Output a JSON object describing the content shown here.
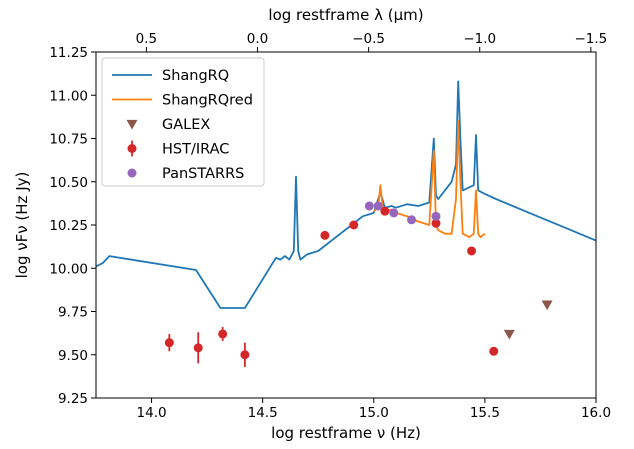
{
  "chart_data": {
    "type": "line",
    "xlabel": "log restframe ν (Hz)",
    "ylabel": "log νFν (Hz Jy)",
    "top_xlabel": "log restframe λ (µm)",
    "xlim": [
      13.75,
      16.0
    ],
    "ylim": [
      9.25,
      11.25
    ],
    "x_ticks": [
      {
        "value": 14.0,
        "label": "14.0"
      },
      {
        "value": 14.5,
        "label": "14.5"
      },
      {
        "value": 15.0,
        "label": "15.0"
      },
      {
        "value": 15.5,
        "label": "15.5"
      },
      {
        "value": 16.0,
        "label": "16.0"
      }
    ],
    "y_ticks": [
      {
        "value": 9.25,
        "label": "9.25"
      },
      {
        "value": 9.5,
        "label": "9.50"
      },
      {
        "value": 9.75,
        "label": "9.75"
      },
      {
        "value": 10.0,
        "label": "10.00"
      },
      {
        "value": 10.25,
        "label": "10.25"
      },
      {
        "value": 10.5,
        "label": "10.50"
      },
      {
        "value": 10.75,
        "label": "10.75"
      },
      {
        "value": 11.0,
        "label": "11.00"
      },
      {
        "value": 11.25,
        "label": "11.25"
      }
    ],
    "top_ticks": [
      {
        "value": 0.5,
        "label": "0.5"
      },
      {
        "value": 0.0,
        "label": "0.0"
      },
      {
        "value": -0.5,
        "label": "−0.5"
      },
      {
        "value": -1.0,
        "label": "−1.0"
      },
      {
        "value": -1.5,
        "label": "−1.5"
      }
    ],
    "legend_position": "top-left",
    "colors": {
      "ShangRQ": "#1f77b4",
      "ShangRQred": "#ff7f0e",
      "GALEX": "#8c564b",
      "HST/IRAC": "#d62728",
      "PanSTARRS": "#9467bd"
    },
    "series": [
      {
        "name": "ShangRQ",
        "kind": "line",
        "x": [
          13.75,
          13.78,
          13.81,
          14.2,
          14.31,
          14.42,
          14.54,
          14.56,
          14.58,
          14.6,
          14.62,
          14.64,
          14.65,
          14.66,
          14.67,
          14.7,
          14.75,
          14.8,
          14.85,
          14.9,
          14.95,
          15.0,
          15.03,
          15.05,
          15.08,
          15.1,
          15.15,
          15.2,
          15.25,
          15.27,
          15.28,
          15.29,
          15.32,
          15.35,
          15.37,
          15.38,
          15.39,
          15.4,
          15.45,
          15.46,
          15.47,
          15.5,
          15.55,
          15.7,
          15.85,
          16.0
        ],
        "y": [
          10.01,
          10.03,
          10.07,
          9.99,
          9.77,
          9.77,
          10.02,
          10.06,
          10.05,
          10.07,
          10.05,
          10.1,
          10.53,
          10.1,
          10.05,
          10.08,
          10.1,
          10.15,
          10.2,
          10.25,
          10.3,
          10.32,
          10.44,
          10.35,
          10.36,
          10.35,
          10.37,
          10.36,
          10.38,
          10.75,
          10.42,
          10.4,
          10.45,
          10.5,
          10.6,
          11.08,
          10.75,
          10.45,
          10.48,
          10.77,
          10.45,
          10.43,
          10.4,
          10.32,
          10.24,
          10.16
        ]
      },
      {
        "name": "ShangRQred",
        "kind": "line",
        "x": [
          15.0,
          15.02,
          15.03,
          15.04,
          15.06,
          15.08,
          15.1,
          15.15,
          15.2,
          15.25,
          15.27,
          15.28,
          15.29,
          15.32,
          15.35,
          15.37,
          15.38,
          15.39,
          15.4,
          15.43,
          15.45,
          15.46,
          15.47,
          15.48,
          15.5
        ],
        "y": [
          10.33,
          10.35,
          10.48,
          10.35,
          10.33,
          10.34,
          10.32,
          10.3,
          10.27,
          10.25,
          10.68,
          10.25,
          10.22,
          10.2,
          10.2,
          10.4,
          10.85,
          10.5,
          10.2,
          10.18,
          10.2,
          10.45,
          10.2,
          10.18,
          10.2
        ]
      },
      {
        "name": "GALEX",
        "kind": "marker",
        "marker": "triangle-down",
        "x": [
          15.61,
          15.78
        ],
        "y": [
          9.62,
          9.79
        ]
      },
      {
        "name": "HST/IRAC",
        "kind": "errorbar",
        "marker": "circle",
        "x": [
          14.08,
          14.21,
          14.32,
          14.42,
          14.78,
          14.91,
          15.05,
          15.28,
          15.44,
          15.54
        ],
        "y": [
          9.57,
          9.54,
          9.62,
          9.5,
          10.19,
          10.25,
          10.33,
          10.26,
          10.1,
          9.52
        ],
        "yerr": [
          0.05,
          0.09,
          0.04,
          0.07,
          0.02,
          0.02,
          0.02,
          0.02,
          0.02,
          0.02
        ]
      },
      {
        "name": "PanSTARRS",
        "kind": "marker",
        "marker": "circle",
        "x": [
          14.98,
          15.02,
          15.09,
          15.17,
          15.28
        ],
        "y": [
          10.36,
          10.36,
          10.32,
          10.28,
          10.3
        ]
      }
    ]
  }
}
